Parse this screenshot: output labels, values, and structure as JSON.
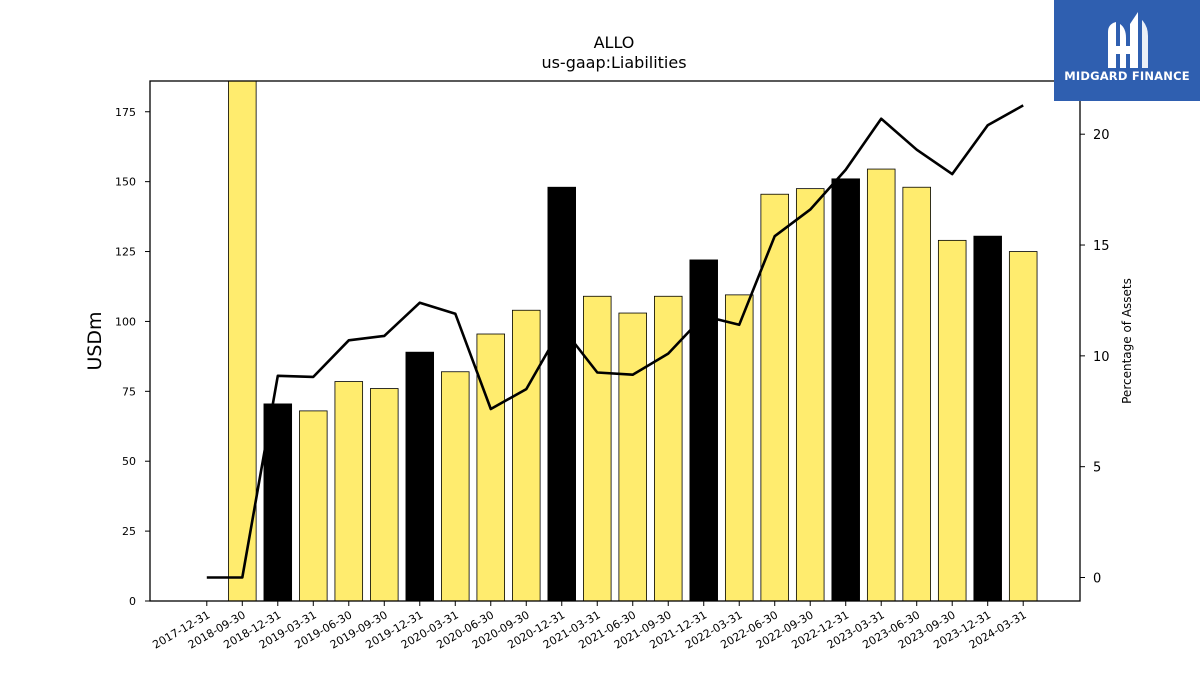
{
  "brand": {
    "name": "MIDGARD FINANCE",
    "bg_color": "#2f5fb0",
    "icon": "midgard-m-logo-icon"
  },
  "chart_data": {
    "type": "bar",
    "title": "ALLO",
    "subtitle": "us-gaap:Liabilities",
    "ylabel": "USDm",
    "y2label": "Percentage of Assets",
    "ylim": [
      0,
      186
    ],
    "y2lim": [
      -1.06,
      22.4
    ],
    "yticks": [
      0,
      25,
      50,
      75,
      100,
      125,
      150,
      175
    ],
    "y2ticks": [
      0,
      5,
      10,
      15,
      20
    ],
    "grid": false,
    "categories": [
      "2017-12-31",
      "2018-09-30",
      "2018-12-31",
      "2019-03-31",
      "2019-06-30",
      "2019-09-30",
      "2019-12-31",
      "2020-03-31",
      "2020-06-30",
      "2020-09-30",
      "2020-12-31",
      "2021-03-31",
      "2021-06-30",
      "2021-09-30",
      "2021-12-31",
      "2022-03-31",
      "2022-06-30",
      "2022-09-30",
      "2022-12-31",
      "2023-03-31",
      "2023-06-30",
      "2023-09-30",
      "2023-12-31",
      "2024-03-31"
    ],
    "series": [
      {
        "values": [
          null,
          186,
          70.5,
          68,
          78.5,
          76,
          89,
          82,
          95.5,
          104,
          148,
          109,
          103,
          109,
          122,
          109.5,
          145.5,
          147.5,
          151,
          154.5,
          148,
          129,
          130.5,
          125
        ],
        "highlight": [
          false,
          false,
          true,
          false,
          false,
          false,
          true,
          false,
          false,
          false,
          true,
          false,
          false,
          false,
          true,
          false,
          false,
          false,
          true,
          false,
          false,
          false,
          true,
          false
        ],
        "color": "#ffec6e",
        "highlight_color": "#000000"
      },
      {
        "axis": "right",
        "type": "line",
        "color": "#000000",
        "values": [
          0,
          0,
          9.1,
          9.05,
          10.7,
          10.9,
          12.4,
          11.9,
          7.6,
          8.5,
          11.3,
          9.25,
          9.15,
          10.1,
          11.8,
          11.4,
          15.4,
          16.6,
          18.4,
          20.7,
          19.3,
          18.2,
          20.4,
          21.3
        ]
      }
    ]
  }
}
